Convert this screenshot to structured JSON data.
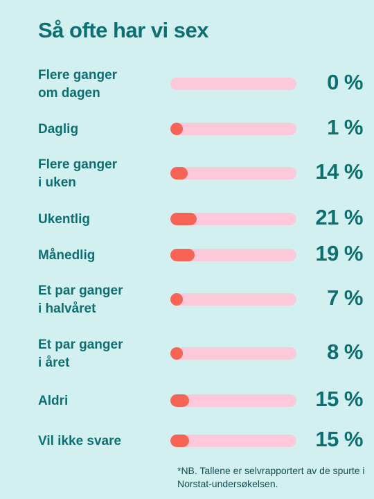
{
  "chart_data": {
    "type": "bar",
    "title": "Så ofte har vi sex",
    "categories": [
      "Flere ganger\nom dagen",
      "Daglig",
      "Flere ganger\ni uken",
      "Ukentlig",
      "Månedlig",
      "Et par ganger\ni halvåret",
      "Et par ganger\ni året",
      "Aldri",
      "Vil ikke svare"
    ],
    "values": [
      0,
      1,
      14,
      21,
      19,
      7,
      8,
      15,
      15
    ],
    "value_labels": [
      "0 %",
      "1 %",
      "14 %",
      "21 %",
      "19 %",
      "7 %",
      "8 %",
      "15 %",
      "15 %"
    ],
    "orientation": "horizontal",
    "xlim": [
      0,
      100
    ],
    "grid": false,
    "colors": {
      "fill": "#f56455",
      "track": "#fbc9da",
      "text": "#0e6f73",
      "background": "#d2f0f0"
    }
  },
  "footnote": "*NB. Tallene er selvrapportert av de spurte i Norstat-undersøkelsen."
}
